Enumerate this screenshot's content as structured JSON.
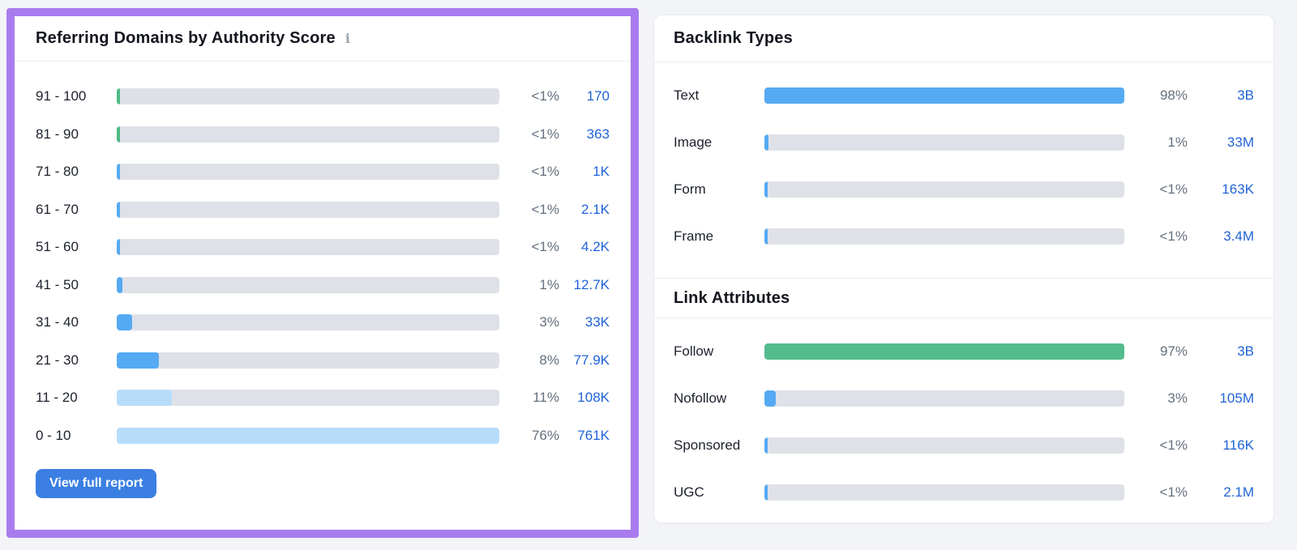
{
  "colors": {
    "page_background": "#f3f4f8",
    "highlight_border": "#a87cee",
    "bar_track": "#dfe1e8",
    "bar_blue": "#55aaf3",
    "bar_light_blue": "#b7dcfa",
    "bar_green_sliver": "#4cba86",
    "bar_green_follow": "#54bb8c",
    "link_blue": "#1f63d8",
    "percent_gray": "#64707e",
    "button_blue": "#3b7fe3"
  },
  "authority_panel": {
    "title": "Referring Domains by Authority Score",
    "info_icon": "info-icon",
    "button_label": "View full report",
    "rows": [
      {
        "label": "91 - 100",
        "percent": "<1%",
        "value": "170",
        "fill": 0.8,
        "color": "#4cba86"
      },
      {
        "label": "81 - 90",
        "percent": "<1%",
        "value": "363",
        "fill": 0.8,
        "color": "#4cba86"
      },
      {
        "label": "71 - 80",
        "percent": "<1%",
        "value": "1K",
        "fill": 0.8,
        "color": "#55aaf3"
      },
      {
        "label": "61 - 70",
        "percent": "<1%",
        "value": "2.1K",
        "fill": 0.8,
        "color": "#55aaf3"
      },
      {
        "label": "51 - 60",
        "percent": "<1%",
        "value": "4.2K",
        "fill": 0.9,
        "color": "#55aaf3"
      },
      {
        "label": "41 - 50",
        "percent": "1%",
        "value": "12.7K",
        "fill": 1.5,
        "color": "#55aaf3"
      },
      {
        "label": "31 - 40",
        "percent": "3%",
        "value": "33K",
        "fill": 4.0,
        "color": "#55aaf3"
      },
      {
        "label": "21 - 30",
        "percent": "8%",
        "value": "77.9K",
        "fill": 11.0,
        "color": "#55aaf3"
      },
      {
        "label": "11 - 20",
        "percent": "11%",
        "value": "108K",
        "fill": 14.5,
        "color": "#b7dcfa"
      },
      {
        "label": "0 - 10",
        "percent": "76%",
        "value": "761K",
        "fill": 100,
        "color": "#b7dcfa"
      }
    ]
  },
  "backlink_types": {
    "title": "Backlink Types",
    "rows": [
      {
        "label": "Text",
        "percent": "98%",
        "value": "3B",
        "fill": 100,
        "color": "#55aaf3"
      },
      {
        "label": "Image",
        "percent": "1%",
        "value": "33M",
        "fill": 1.2,
        "color": "#55aaf3"
      },
      {
        "label": "Form",
        "percent": "<1%",
        "value": "163K",
        "fill": 0.8,
        "color": "#55aaf3"
      },
      {
        "label": "Frame",
        "percent": "<1%",
        "value": "3.4M",
        "fill": 0.8,
        "color": "#55aaf3"
      }
    ]
  },
  "link_attributes": {
    "title": "Link Attributes",
    "rows": [
      {
        "label": "Follow",
        "percent": "97%",
        "value": "3B",
        "fill": 100,
        "color": "#54bb8c"
      },
      {
        "label": "Nofollow",
        "percent": "3%",
        "value": "105M",
        "fill": 3.2,
        "color": "#55aaf3"
      },
      {
        "label": "Sponsored",
        "percent": "<1%",
        "value": "116K",
        "fill": 0.8,
        "color": "#55aaf3"
      },
      {
        "label": "UGC",
        "percent": "<1%",
        "value": "2.1M",
        "fill": 0.8,
        "color": "#55aaf3"
      }
    ]
  },
  "chart_data": [
    {
      "type": "bar",
      "title": "Referring Domains by Authority Score",
      "categories": [
        "91 - 100",
        "81 - 90",
        "71 - 80",
        "61 - 70",
        "51 - 60",
        "41 - 50",
        "31 - 40",
        "21 - 30",
        "11 - 20",
        "0 - 10"
      ],
      "values_percent": [
        "<1%",
        "<1%",
        "<1%",
        "<1%",
        "<1%",
        "1%",
        "3%",
        "8%",
        "11%",
        "76%"
      ],
      "values_count": [
        "170",
        "363",
        "1K",
        "2.1K",
        "4.2K",
        "12.7K",
        "33K",
        "77.9K",
        "108K",
        "761K"
      ]
    },
    {
      "type": "bar",
      "title": "Backlink Types",
      "categories": [
        "Text",
        "Image",
        "Form",
        "Frame"
      ],
      "values_percent": [
        "98%",
        "1%",
        "<1%",
        "<1%"
      ],
      "values_count": [
        "3B",
        "33M",
        "163K",
        "3.4M"
      ]
    },
    {
      "type": "bar",
      "title": "Link Attributes",
      "categories": [
        "Follow",
        "Nofollow",
        "Sponsored",
        "UGC"
      ],
      "values_percent": [
        "97%",
        "3%",
        "<1%",
        "<1%"
      ],
      "values_count": [
        "3B",
        "105M",
        "116K",
        "2.1M"
      ]
    }
  ]
}
